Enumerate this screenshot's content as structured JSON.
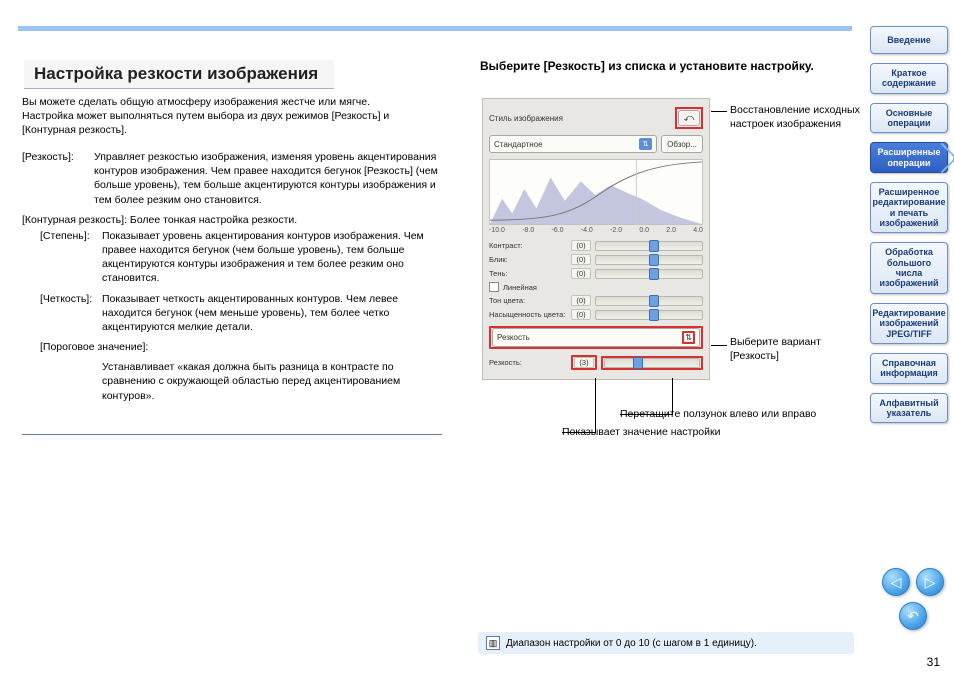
{
  "page_number": "31",
  "top_bar_color": "#9cc4f0",
  "title": "Настройка резкости изображения",
  "intro": "Вы можете сделать общую атмосферу изображения жестче или мягче. Настройка может выполняться путем выбора из двух режимов [Резкость] и [Контурная резкость].",
  "definitions": {
    "sharpness_term": "[Резкость]:",
    "sharpness_body": "Управляет резкостью изображения, изменяя уровень акцентирования контуров изображения. Чем правее находится бегунок [Резкость] (чем больше уровень), тем больше акцентируются контуры изображения и тем более резким оно становится.",
    "unsharp_term": "[Контурная резкость]:",
    "unsharp_body": "Более тонкая настройка резкости.",
    "strength_term": "[Степень]:",
    "strength_body": "Показывает уровень акцентирования контуров изображения. Чем правее находится бегунок (чем больше уровень), тем больше акцентируются контуры изображения и тем более резким оно становится.",
    "fineness_term": "[Четкость]:",
    "fineness_body": "Показывает четкость акцентированных контуров. Чем левее находится бегунок (чем меньше уровень), тем более четко акцентируются мелкие детали.",
    "threshold_term": "[Пороговое значение]:",
    "threshold_body": "Устанавливает «какая должна быть разница в контрасте по сравнению с окружающей областью перед акцентированием контуров»."
  },
  "right_heading": "Выберите [Резкость] из списка и установите настройку.",
  "panel": {
    "header_label": "Стиль изображения",
    "reset_glyph": "⤺",
    "style_dd": "Стандартное",
    "browse": "Обзор...",
    "axis": [
      "-10.0",
      "-8.0",
      "-6.0",
      "-4.0",
      "-2.0",
      "0.0",
      "2.0",
      "4.0"
    ],
    "rows": [
      {
        "label": "Контраст:",
        "val": "(0)",
        "thumb": 50
      },
      {
        "label": "Блик:",
        "val": "(0)",
        "thumb": 50
      },
      {
        "label": "Тень:",
        "val": "(0)",
        "thumb": 50
      }
    ],
    "linear_label": "Линейная",
    "rows2": [
      {
        "label": "Тон цвета:",
        "val": "(0)",
        "thumb": 50
      },
      {
        "label": "Насыщенность цвета:",
        "val": "(0)",
        "thumb": 50
      }
    ],
    "sharp_dd": "Резкость",
    "sharp_row": {
      "label": "Резкость:",
      "val": "(3)",
      "thumb": 30
    }
  },
  "callouts": {
    "reset": "Восстановление исходных настроек изображения",
    "choose": "Выберите вариант [Резкость]",
    "drag": "Перетащите ползунок влево или вправо",
    "shows": "Показывает значение настройки"
  },
  "sidebar": [
    {
      "label": "Введение",
      "active": false
    },
    {
      "label": "Краткое содержание",
      "active": false
    },
    {
      "label": "Основные операции",
      "active": false
    },
    {
      "label": "Расширенные операции",
      "active": true
    },
    {
      "label": "Расширенное редактирование и печать изображений",
      "active": false
    },
    {
      "label": "Обработка большого числа изображений",
      "active": false
    },
    {
      "label": "Редактирование изображений JPEG/TIFF",
      "active": false
    },
    {
      "label": "Справочная информация",
      "active": false
    },
    {
      "label": "Алфавитный указатель",
      "active": false
    }
  ],
  "nav": {
    "prev": "◁",
    "next": "▷",
    "return": "↶"
  },
  "footnote": "Диапазон настройки от 0 до 10 (с шагом в 1 единицу)."
}
